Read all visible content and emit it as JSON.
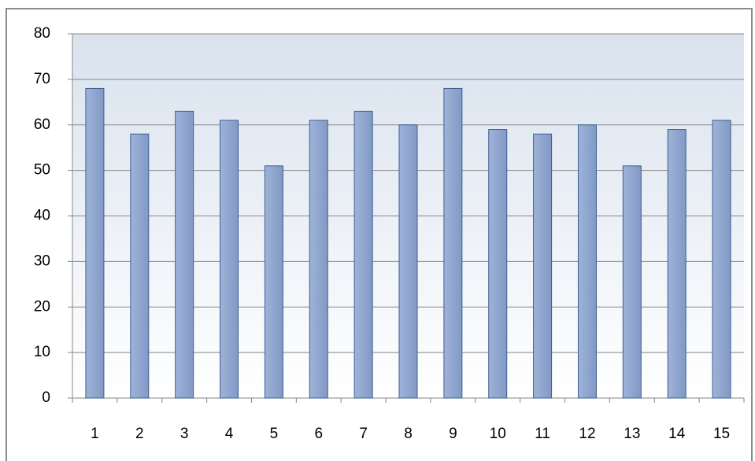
{
  "chart_data": {
    "type": "bar",
    "categories": [
      "1",
      "2",
      "3",
      "4",
      "5",
      "6",
      "7",
      "8",
      "9",
      "10",
      "11",
      "12",
      "13",
      "14",
      "15"
    ],
    "values": [
      68,
      58,
      63,
      61,
      51,
      61,
      63,
      60,
      68,
      59,
      58,
      60,
      51,
      59,
      61
    ],
    "color": "#8ea5ce",
    "ylim": [
      0,
      80
    ],
    "yticks": [
      0,
      10,
      20,
      30,
      40,
      50,
      60,
      70,
      80
    ],
    "grid": true
  }
}
